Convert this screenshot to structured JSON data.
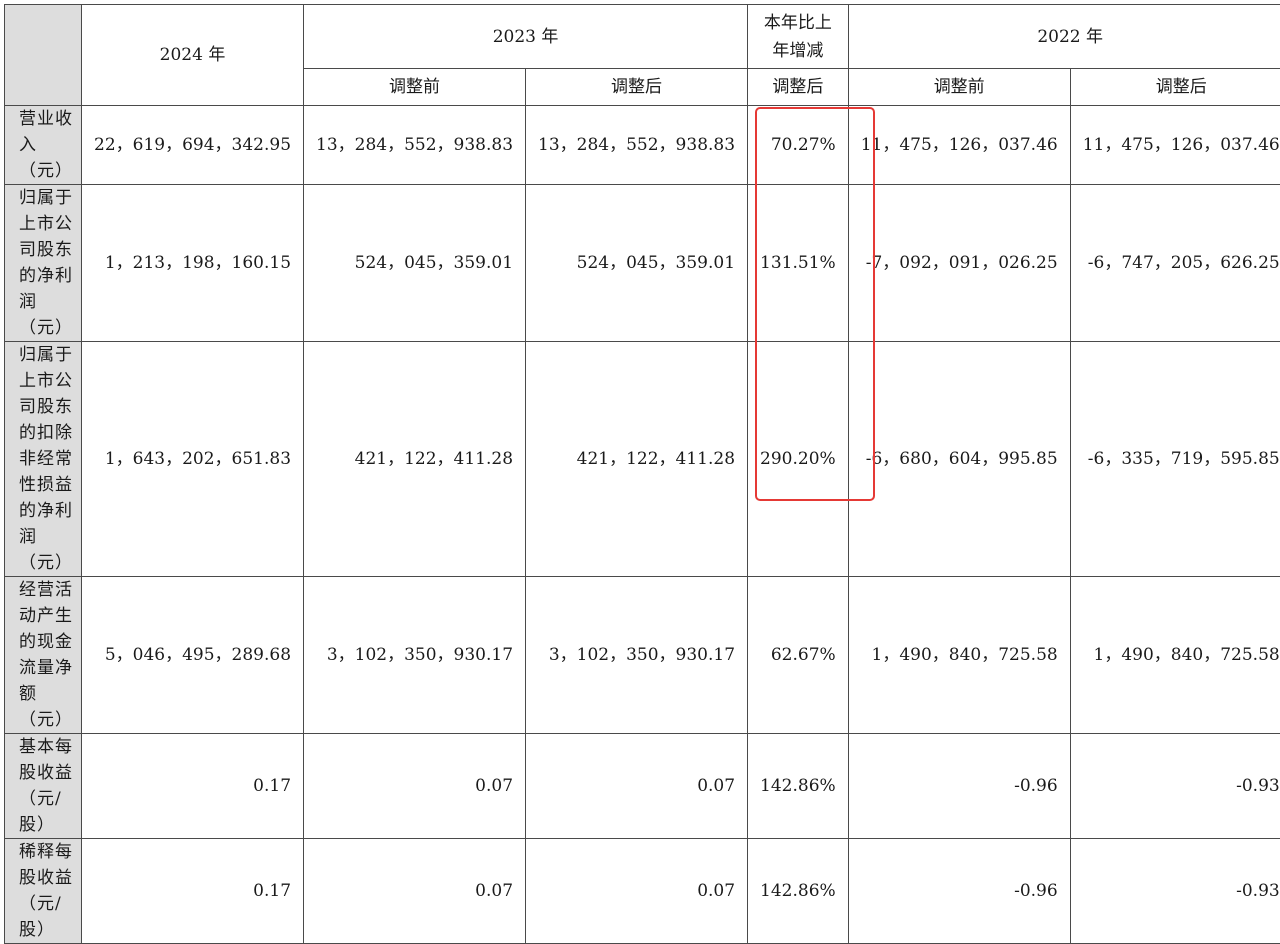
{
  "header": {
    "y2024": "2024 年",
    "y2023": "2023 年",
    "change": "本年比上\n年增减",
    "y2022": "2022 年",
    "sub_before": "调整前",
    "sub_after": "调整后"
  },
  "rows": [
    {
      "label": "营业收入\n（元）",
      "v2024": "22，619，694，342.95",
      "v2023_before": "13，284，552，938.83",
      "v2023_after": "13，284，552，938.83",
      "change": "70.27%",
      "v2022_before": "11，475，126，037.46",
      "v2022_after": "11，475，126，037.46"
    },
    {
      "label": "归属于上市公\n司股东的净利\n润（元）",
      "v2024": "1，213，198，160.15",
      "v2023_before": "524，045，359.01",
      "v2023_after": "524，045，359.01",
      "change": "131.51%",
      "v2022_before": "-7，092，091，026.25",
      "v2022_after": "-6，747，205，626.25"
    },
    {
      "label": "归属于上市公\n司股东的扣除\n非经常性损益\n的净利润\n（元）",
      "v2024": "1，643，202，651.83",
      "v2023_before": "421，122，411.28",
      "v2023_after": "421，122，411.28",
      "change": "290.20%",
      "v2022_before": "-6，680，604，995.85",
      "v2022_after": "-6，335，719，595.85"
    },
    {
      "label": "经营活动产生\n的现金流量净\n额（元）",
      "v2024": "5，046，495，289.68",
      "v2023_before": "3，102，350，930.17",
      "v2023_after": "3，102，350，930.17",
      "change": "62.67%",
      "v2022_before": "1，490，840，725.58",
      "v2022_after": "1，490，840，725.58"
    },
    {
      "label": "基本每股收益\n（元/股）",
      "v2024": "0.17",
      "v2023_before": "0.07",
      "v2023_after": "0.07",
      "change": "142.86%",
      "v2022_before": "-0.96",
      "v2022_after": "-0.93"
    },
    {
      "label": "稀释每股收益\n（元/股）",
      "v2024": "0.17",
      "v2023_before": "0.07",
      "v2023_after": "0.07",
      "change": "142.86%",
      "v2022_before": "-0.96",
      "v2022_after": "-0.93"
    }
  ],
  "colors": {
    "label_bg": "#dddddd",
    "highlight": "#e53935",
    "border": "#4a4a4a"
  }
}
